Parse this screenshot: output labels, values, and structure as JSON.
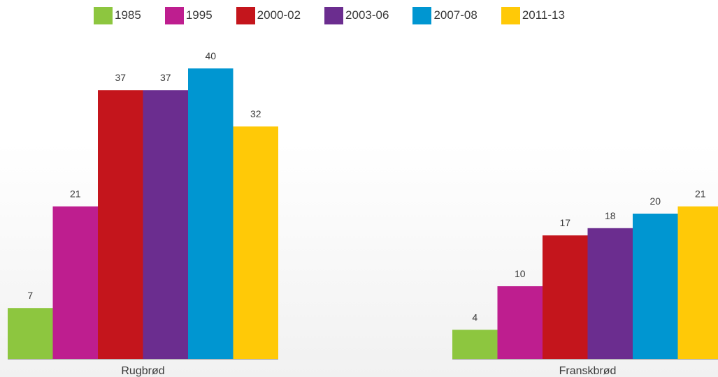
{
  "chart_data": {
    "type": "bar",
    "title": "",
    "xlabel": "",
    "ylabel": "",
    "ylim": [
      0,
      40
    ],
    "grid": false,
    "legend_position": "top",
    "categories": [
      "Rugbrød",
      "Franskbrød"
    ],
    "series": [
      {
        "name": "1985",
        "color": "#8dc63f",
        "values": [
          7,
          4
        ]
      },
      {
        "name": "1995",
        "color": "#be1e8f",
        "values": [
          21,
          10
        ]
      },
      {
        "name": "2000-02",
        "color": "#c4151c",
        "values": [
          37,
          17
        ]
      },
      {
        "name": "2003-06",
        "color": "#6b2d8f",
        "values": [
          37,
          18
        ]
      },
      {
        "name": "2007-08",
        "color": "#0096d1",
        "values": [
          40,
          20
        ]
      },
      {
        "name": "2011-13",
        "color": "#ffc907",
        "values": [
          32,
          21
        ]
      }
    ]
  }
}
